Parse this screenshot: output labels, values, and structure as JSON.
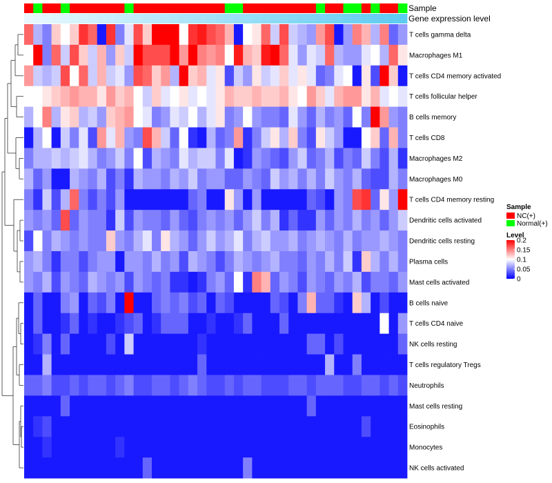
{
  "chart_data": {
    "type": "heatmap",
    "annotation_labels": [
      "Sample",
      "Gene expression level"
    ],
    "rows": [
      "T cells gamma delta",
      "Macrophages M1",
      "T cells CD4 memory activated",
      "T cells follicular helper",
      "B cells memory",
      "T cells CD8",
      "Macrophages M2",
      "Macrophages M0",
      "T cells CD4 memory resting",
      "Dendritic cells activated",
      "Dendritic cells resting",
      "Plasma cells",
      "Mast cells activated",
      "B cells naive",
      "T cells CD4 naive",
      "NK cells resting",
      "T cells regulatory  Tregs",
      "Neutrophils",
      "Mast cells resting",
      "Eosinophils",
      "Monocytes",
      "NK cells activated"
    ],
    "sample_groups": [
      "NC",
      "Normal",
      "NC",
      "NC",
      "Normal",
      "NC",
      "NC",
      "NC",
      "NC",
      "NC",
      "NC",
      "Normal",
      "NC",
      "NC",
      "NC",
      "NC",
      "NC",
      "NC",
      "NC",
      "NC",
      "NC",
      "NC",
      "Normal",
      "Normal",
      "NC",
      "NC",
      "NC",
      "NC",
      "NC",
      "NC",
      "NC",
      "NC",
      "Normal",
      "NC",
      "NC",
      "Normal",
      "Normal",
      "NC",
      "Normal",
      "NC",
      "NC",
      "Normal"
    ],
    "values": [
      [
        0.16,
        0.07,
        0.05,
        0.12,
        0.1,
        0.12,
        0.18,
        0.16,
        0.01,
        0.18,
        0.05,
        0.09,
        0.17,
        0.12,
        0.2,
        0.2,
        0.2,
        0.1,
        0.18,
        0.19,
        0.17,
        0.16,
        0.13,
        0.01,
        0.1,
        0.11,
        0.16,
        0.08,
        0.17,
        0.08,
        0.07,
        0.06,
        0.14,
        0.17,
        0.01,
        0.06,
        0.15,
        0.13,
        0.07,
        0.15,
        0.04,
        0.06
      ],
      [
        0.1,
        0.2,
        0.05,
        0.16,
        0.08,
        0.17,
        0.12,
        0.08,
        0.13,
        0.06,
        0.12,
        0.08,
        0.2,
        0.17,
        0.17,
        0.17,
        0.2,
        0.14,
        0.2,
        0.15,
        0.14,
        0.15,
        0.1,
        0.19,
        0.13,
        0.12,
        0.19,
        0.2,
        0.16,
        0.09,
        0.06,
        0.09,
        0.08,
        0.16,
        0.07,
        0.06,
        0.06,
        0.09,
        0.1,
        0.07,
        0.16,
        0.11
      ],
      [
        0.14,
        0.08,
        0.07,
        0.08,
        0.17,
        0.1,
        0.16,
        0.08,
        0.13,
        0.08,
        0.09,
        0.06,
        0.17,
        0.16,
        0.12,
        0.14,
        0.07,
        0.2,
        0.12,
        0.13,
        0.09,
        0.11,
        0.03,
        0.08,
        0.06,
        0.11,
        0.08,
        0.09,
        0.12,
        0.09,
        0.11,
        0.09,
        0.04,
        0.05,
        0.09,
        0.1,
        0.01,
        0.11,
        0.03,
        0.2,
        0.12,
        0.01
      ],
      [
        0.1,
        0.1,
        0.11,
        0.12,
        0.13,
        0.14,
        0.13,
        0.13,
        0.11,
        0.14,
        0.12,
        0.13,
        0.1,
        0.08,
        0.12,
        0.09,
        0.1,
        0.11,
        0.09,
        0.1,
        0.09,
        0.11,
        0.13,
        0.12,
        0.12,
        0.13,
        0.12,
        0.12,
        0.13,
        0.11,
        0.1,
        0.14,
        0.12,
        0.09,
        0.13,
        0.14,
        0.14,
        0.11,
        0.13,
        0.09,
        0.1,
        0.09
      ],
      [
        0.07,
        0.1,
        0.15,
        0.07,
        0.11,
        0.12,
        0.07,
        0.08,
        0.06,
        0.12,
        0.13,
        0.14,
        0.1,
        0.09,
        0.05,
        0.06,
        0.09,
        0.08,
        0.1,
        0.07,
        0.09,
        0.11,
        0.05,
        0.06,
        0.1,
        0.06,
        0.05,
        0.05,
        0.04,
        0.09,
        0.06,
        0.04,
        0.07,
        0.05,
        0.06,
        0.04,
        0.1,
        0.05,
        0.2,
        0.14,
        0.06,
        0.05
      ],
      [
        0.01,
        0.07,
        0.1,
        0.01,
        0.08,
        0.05,
        0.09,
        0.03,
        0.14,
        0.09,
        0.13,
        0.06,
        0.05,
        0.17,
        0.13,
        0.08,
        0.04,
        0.1,
        0.02,
        0.01,
        0.07,
        0.04,
        0.05,
        0.14,
        0.02,
        0.05,
        0.08,
        0.11,
        0.07,
        0.12,
        0.05,
        0.03,
        0.11,
        0.08,
        0.06,
        0.01,
        0.01,
        0.1,
        0.12,
        0.04,
        0.13,
        0.05
      ],
      [
        0.05,
        0.07,
        0.07,
        0.08,
        0.07,
        0.08,
        0.09,
        0.07,
        0.05,
        0.06,
        0.08,
        0.05,
        0.1,
        0.03,
        0.07,
        0.06,
        0.05,
        0.09,
        0.07,
        0.08,
        0.08,
        0.05,
        0.09,
        0.01,
        0.02,
        0.06,
        0.05,
        0.04,
        0.03,
        0.06,
        0.08,
        0.04,
        0.05,
        0.07,
        0.03,
        0.05,
        0.04,
        0.08,
        0.05,
        0.03,
        0.07,
        0.02
      ],
      [
        0.07,
        0.04,
        0.06,
        0.01,
        0.01,
        0.07,
        0.06,
        0.05,
        0.07,
        0.03,
        0.05,
        0.02,
        0.07,
        0.06,
        0.06,
        0.05,
        0.07,
        0.06,
        0.08,
        0.05,
        0.06,
        0.06,
        0.04,
        0.04,
        0.06,
        0.05,
        0.04,
        0.08,
        0.06,
        0.07,
        0.05,
        0.07,
        0.05,
        0.08,
        0.06,
        0.05,
        0.07,
        0.04,
        0.03,
        0.03,
        0.07,
        0.05
      ],
      [
        0.05,
        0.02,
        0.08,
        0.03,
        0.07,
        0.16,
        0.05,
        0.03,
        0.05,
        0.03,
        0.06,
        0.01,
        0.01,
        0.01,
        0.01,
        0.01,
        0.01,
        0.01,
        0.04,
        0.05,
        0.01,
        0.01,
        0.11,
        0.06,
        0.01,
        0.06,
        0.01,
        0.01,
        0.01,
        0.01,
        0.01,
        0.04,
        0.03,
        0.01,
        0.06,
        0.05,
        0.17,
        0.18,
        0.04,
        0.11,
        0.06,
        0.2
      ],
      [
        0.06,
        0.05,
        0.06,
        0.04,
        0.17,
        0.04,
        0.06,
        0.05,
        0.05,
        0.02,
        0.08,
        0.03,
        0.06,
        0.05,
        0.05,
        0.04,
        0.06,
        0.04,
        0.03,
        0.05,
        0.06,
        0.05,
        0.06,
        0.04,
        0.06,
        0.08,
        0.05,
        0.07,
        0.02,
        0.04,
        0.02,
        0.02,
        0.06,
        0.04,
        0.06,
        0.05,
        0.07,
        0.05,
        0.06,
        0.04,
        0.06,
        0.08
      ],
      [
        0.03,
        0.1,
        0.05,
        0.07,
        0.06,
        0.05,
        0.06,
        0.05,
        0.05,
        0.12,
        0.06,
        0.05,
        0.07,
        0.09,
        0.05,
        0.11,
        0.07,
        0.06,
        0.04,
        0.06,
        0.08,
        0.06,
        0.07,
        0.09,
        0.05,
        0.07,
        0.08,
        0.06,
        0.06,
        0.07,
        0.05,
        0.06,
        0.07,
        0.06,
        0.05,
        0.07,
        0.05,
        0.06,
        0.06,
        0.07,
        0.06,
        0.05
      ],
      [
        0.06,
        0.07,
        0.05,
        0.02,
        0.05,
        0.05,
        0.03,
        0.05,
        0.06,
        0.06,
        0.01,
        0.06,
        0.06,
        0.05,
        0.07,
        0.05,
        0.06,
        0.03,
        0.07,
        0.06,
        0.05,
        0.03,
        0.05,
        0.07,
        0.06,
        0.05,
        0.06,
        0.07,
        0.05,
        0.05,
        0.04,
        0.06,
        0.05,
        0.07,
        0.05,
        0.08,
        0.02,
        0.12,
        0.07,
        0.05,
        0.07,
        0.05
      ],
      [
        0.06,
        0.05,
        0.07,
        0.03,
        0.06,
        0.05,
        0.04,
        0.07,
        0.06,
        0.05,
        0.06,
        0.03,
        0.06,
        0.05,
        0.04,
        0.05,
        0.02,
        0.02,
        0.01,
        0.02,
        0.05,
        0.06,
        0.04,
        0.1,
        0.02,
        0.15,
        0.13,
        0.04,
        0.06,
        0.05,
        0.03,
        0.06,
        0.05,
        0.04,
        0.06,
        0.05,
        0.07,
        0.03,
        0.05,
        0.05,
        0.04,
        0.06
      ],
      [
        0.01,
        0.04,
        0.01,
        0.01,
        0.05,
        0.06,
        0.01,
        0.04,
        0.03,
        0.05,
        0.01,
        0.2,
        0.01,
        0.01,
        0.04,
        0.05,
        0.04,
        0.05,
        0.03,
        0.04,
        0.01,
        0.04,
        0.03,
        0.01,
        0.01,
        0.01,
        0.01,
        0.04,
        0.03,
        0.01,
        0.05,
        0.13,
        0.04,
        0.04,
        0.02,
        0.01,
        0.12,
        0.07,
        0.01,
        0.03,
        0.01,
        0.01
      ],
      [
        0.01,
        0.04,
        0.01,
        0.01,
        0.02,
        0.04,
        0.01,
        0.02,
        0.01,
        0.01,
        0.02,
        0.03,
        0.04,
        0.01,
        0.02,
        0.04,
        0.04,
        0.04,
        0.01,
        0.01,
        0.02,
        0.01,
        0.01,
        0.02,
        0.04,
        0.01,
        0.01,
        0.01,
        0.04,
        0.01,
        0.01,
        0.01,
        0.01,
        0.01,
        0.01,
        0.01,
        0.01,
        0.01,
        0.01,
        0.1,
        0.01,
        0.06
      ],
      [
        0.01,
        0.02,
        0.05,
        0.01,
        0.04,
        0.01,
        0.01,
        0.01,
        0.01,
        0.03,
        0.01,
        0.08,
        0.01,
        0.01,
        0.01,
        0.01,
        0.01,
        0.01,
        0.01,
        0.02,
        0.01,
        0.01,
        0.01,
        0.01,
        0.01,
        0.01,
        0.01,
        0.01,
        0.01,
        0.01,
        0.01,
        0.04,
        0.04,
        0.01,
        0.03,
        0.01,
        0.01,
        0.01,
        0.01,
        0.01,
        0.01,
        0.04
      ],
      [
        0.01,
        0.01,
        0.07,
        0.01,
        0.01,
        0.01,
        0.01,
        0.01,
        0.01,
        0.01,
        0.01,
        0.01,
        0.01,
        0.01,
        0.01,
        0.01,
        0.01,
        0.01,
        0.01,
        0.04,
        0.01,
        0.01,
        0.01,
        0.01,
        0.01,
        0.01,
        0.01,
        0.01,
        0.01,
        0.01,
        0.01,
        0.01,
        0.01,
        0.07,
        0.01,
        0.01,
        0.05,
        0.01,
        0.01,
        0.01,
        0.01,
        0.01
      ],
      [
        0.04,
        0.04,
        0.05,
        0.03,
        0.03,
        0.04,
        0.03,
        0.04,
        0.04,
        0.03,
        0.04,
        0.05,
        0.03,
        0.03,
        0.04,
        0.04,
        0.03,
        0.04,
        0.05,
        0.04,
        0.03,
        0.03,
        0.04,
        0.03,
        0.04,
        0.04,
        0.03,
        0.03,
        0.03,
        0.04,
        0.04,
        0.03,
        0.04,
        0.04,
        0.04,
        0.03,
        0.03,
        0.04,
        0.04,
        0.03,
        0.04,
        0.03
      ],
      [
        0.01,
        0.01,
        0.01,
        0.01,
        0.04,
        0.01,
        0.01,
        0.01,
        0.01,
        0.01,
        0.01,
        0.01,
        0.01,
        0.01,
        0.01,
        0.01,
        0.01,
        0.01,
        0.01,
        0.01,
        0.01,
        0.01,
        0.01,
        0.01,
        0.01,
        0.01,
        0.01,
        0.01,
        0.01,
        0.01,
        0.01,
        0.04,
        0.01,
        0.01,
        0.01,
        0.01,
        0.01,
        0.01,
        0.01,
        0.01,
        0.01,
        0.01
      ],
      [
        0.01,
        0.02,
        0.03,
        0.01,
        0.01,
        0.01,
        0.01,
        0.01,
        0.01,
        0.01,
        0.01,
        0.01,
        0.01,
        0.01,
        0.01,
        0.01,
        0.01,
        0.01,
        0.01,
        0.01,
        0.01,
        0.01,
        0.01,
        0.01,
        0.01,
        0.01,
        0.01,
        0.01,
        0.01,
        0.01,
        0.01,
        0.01,
        0.01,
        0.01,
        0.01,
        0.01,
        0.01,
        0.03,
        0.01,
        0.01,
        0.01,
        0.01
      ],
      [
        0.01,
        0.01,
        0.02,
        0.01,
        0.01,
        0.01,
        0.01,
        0.01,
        0.01,
        0.01,
        0.02,
        0.01,
        0.01,
        0.01,
        0.01,
        0.01,
        0.01,
        0.01,
        0.01,
        0.01,
        0.01,
        0.01,
        0.01,
        0.01,
        0.01,
        0.01,
        0.01,
        0.01,
        0.01,
        0.01,
        0.01,
        0.01,
        0.01,
        0.01,
        0.01,
        0.01,
        0.01,
        0.01,
        0.01,
        0.01,
        0.01,
        0.01
      ],
      [
        0.01,
        0.01,
        0.01,
        0.01,
        0.01,
        0.01,
        0.01,
        0.01,
        0.01,
        0.01,
        0.01,
        0.01,
        0.01,
        0.04,
        0.01,
        0.01,
        0.01,
        0.01,
        0.01,
        0.01,
        0.01,
        0.01,
        0.01,
        0.01,
        0.05,
        0.01,
        0.01,
        0.01,
        0.01,
        0.01,
        0.01,
        0.01,
        0.01,
        0.01,
        0.01,
        0.01,
        0.01,
        0.01,
        0.01,
        0.01,
        0.01,
        0.01
      ]
    ],
    "legend": {
      "sample_title": "Sample",
      "sample_entries": [
        {
          "key": "NC",
          "label": "NC(+)",
          "color": "#ff0000"
        },
        {
          "key": "Normal",
          "label": "Normal(+)",
          "color": "#00ff00"
        }
      ],
      "level_title": "Level",
      "level_ticks": [
        {
          "value": 0.2,
          "label": "0.2"
        },
        {
          "value": 0.15,
          "label": "0.15"
        },
        {
          "value": 0.1,
          "label": "0.1"
        },
        {
          "value": 0.05,
          "label": "0.05"
        },
        {
          "value": 0,
          "label": "0"
        }
      ]
    },
    "color_scale": {
      "low": "#0000ff",
      "mid": "#ffffff",
      "high": "#ff0000",
      "domain": [
        0,
        0.1,
        0.2
      ]
    },
    "expression_bar_colors": [
      "#e8f8fe",
      "#5ecbf1"
    ],
    "legend_placement": "right"
  }
}
